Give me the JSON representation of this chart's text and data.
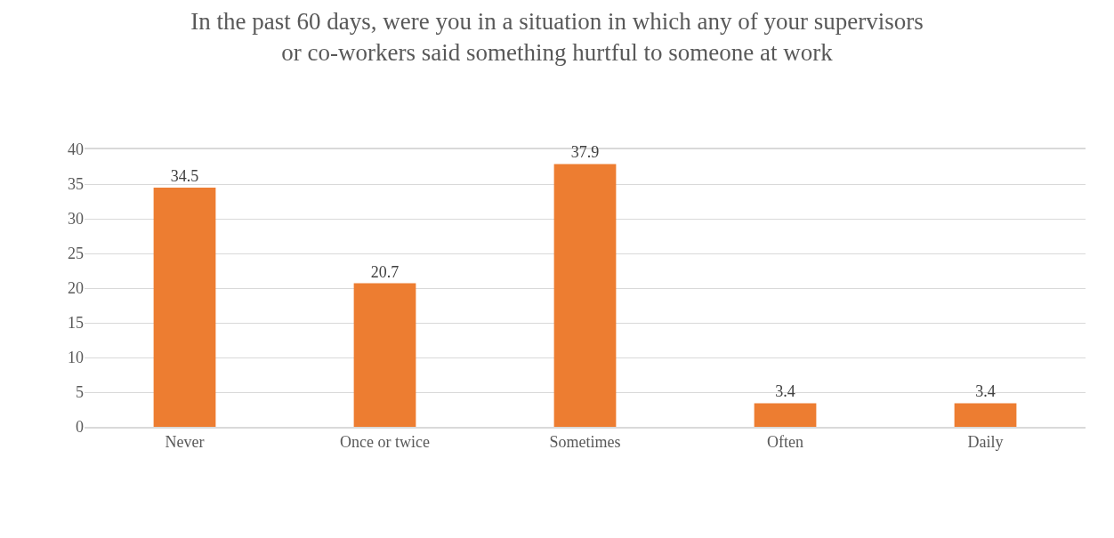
{
  "chart_data": {
    "type": "bar",
    "title": "In the past 60 days, were you in a situation in which any of your supervisors\nor co-workers said something hurtful to someone at work",
    "categories": [
      "Never",
      "Once or twice",
      "Sometimes",
      "Often",
      "Daily"
    ],
    "values": [
      34.5,
      20.7,
      37.9,
      3.4,
      3.4
    ],
    "color": "#ed7d31",
    "ylim": [
      0,
      40
    ],
    "yticks": [
      0,
      5,
      10,
      15,
      20,
      25,
      30,
      35,
      40
    ],
    "grid": "y",
    "data_labels": true
  }
}
